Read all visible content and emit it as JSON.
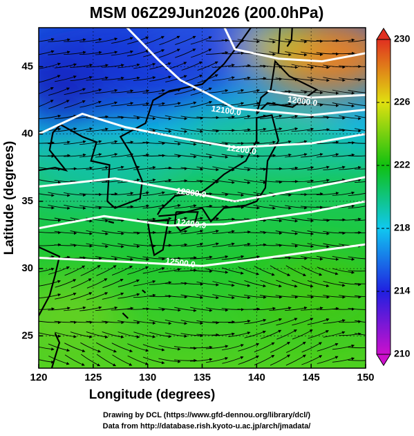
{
  "chart_data": {
    "type": "map",
    "title": "MSM 06Z29Jun2026 (200.0hPa)",
    "xlabel": "Longitude (degrees)",
    "ylabel": "Latitude  (degrees)",
    "xlim": [
      120,
      150
    ],
    "ylim": [
      22.6,
      47.9
    ],
    "xticks": [
      120,
      125,
      130,
      135,
      140,
      145,
      150
    ],
    "yticks": [
      25,
      30,
      35,
      40,
      45
    ],
    "grid": true,
    "colorbar": {
      "lim": [
        210,
        230
      ],
      "ticks": [
        210,
        214,
        218,
        222,
        226,
        230
      ],
      "colors": [
        "#cc10cc",
        "#2020e0",
        "#10c8f0",
        "#10c010",
        "#e0e010",
        "#e03020"
      ]
    },
    "contours": [
      {
        "value": 12000,
        "label": "12000.0"
      },
      {
        "value": 12100,
        "label": "12100.0"
      },
      {
        "value": 12200,
        "label": "12200.0"
      },
      {
        "value": 12300,
        "label": "12300.0"
      },
      {
        "value": 12400,
        "label": "12400.0"
      },
      {
        "value": 12500,
        "label": "12500.0"
      }
    ]
  },
  "footer": [
    "Drawing by DCL (https://www.gfd-dennou.org/library/dcl/)",
    "Data from http://database.rish.kyoto-u.ac.jp/arch/jmadata/"
  ]
}
